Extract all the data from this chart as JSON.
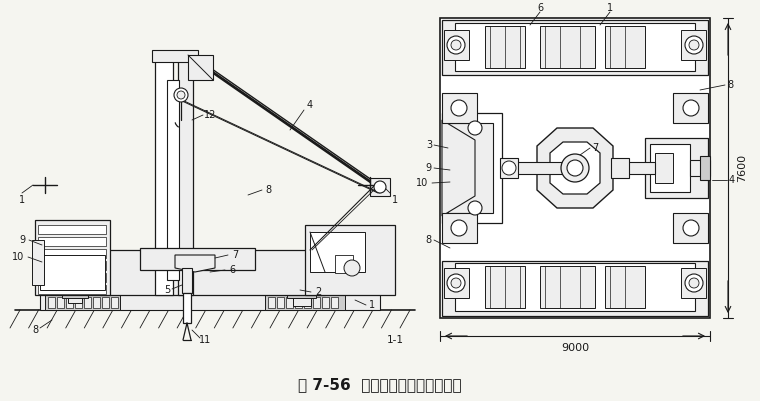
{
  "title": "图 7-56  全液压式静力压桩机压桩",
  "title_fontsize": 11,
  "bg_color": "#f5f5f0",
  "fig_width": 7.6,
  "fig_height": 4.01,
  "caption_1_1": "1-1",
  "dim_9000": "9000",
  "dim_7600": "7600",
  "lc": "#1a1a1a",
  "fc_white": "#ffffff",
  "fc_light": "#eeeeee",
  "fc_gray": "#cccccc"
}
